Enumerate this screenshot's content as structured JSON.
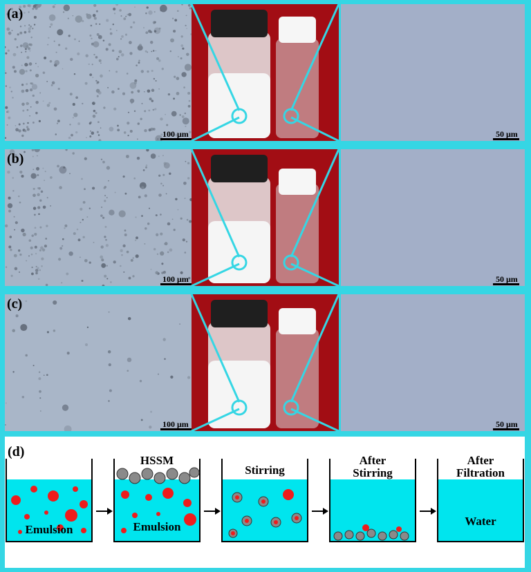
{
  "figure": {
    "colors": {
      "frame": "#35d6e4",
      "background_red": "#a20d14",
      "micrograph": "#a9b6c7",
      "clear_field": "#a2aec8",
      "emulsion": "#eeeeee",
      "water": "#00e5ee",
      "droplet": "#ee1c1c",
      "hssm": "#8a8a8a",
      "cap": "#202020",
      "white_cap": "#f4f4f4"
    },
    "rows": [
      {
        "label": "(a)",
        "scale_left": "100 μm",
        "scale_right": "50 μm",
        "droplet_density": "high"
      },
      {
        "label": "(b)",
        "scale_left": "100 μm",
        "scale_right": "50 μm",
        "droplet_density": "medium"
      },
      {
        "label": "(c)",
        "scale_left": "100 μm",
        "scale_right": "50 μm",
        "droplet_density": "low"
      }
    ],
    "panel_d": {
      "label": "(d)",
      "steps": [
        {
          "label": "Emulsion",
          "top_label": ""
        },
        {
          "label": "Emulsion",
          "top_label": "HSSM"
        },
        {
          "label": "",
          "top_label": "Stirring"
        },
        {
          "label": "",
          "top_label": "After Stirring"
        },
        {
          "label": "Water",
          "top_label": "After Filtration"
        }
      ]
    }
  }
}
